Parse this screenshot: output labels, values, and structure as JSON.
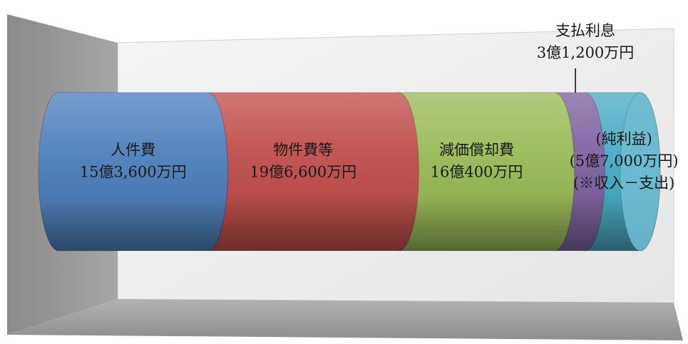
{
  "chart_data": {
    "type": "bar",
    "orientation": "horizontal-stacked-cylinder",
    "unit": "万円",
    "categories": [
      "人件費",
      "物件費等",
      "減価償却費",
      "支払利息",
      "(純利益)"
    ],
    "values": [
      153600,
      196600,
      160400,
      31200,
      57000
    ],
    "segments": [
      {
        "name": "人件費",
        "value": 153600,
        "value_label": "15億3,600万円",
        "note": "",
        "color": "#4f81bd",
        "label_position": "inside"
      },
      {
        "name": "物件費等",
        "value": 196600,
        "value_label": "19億6,600万円",
        "note": "",
        "color": "#c0504d",
        "label_position": "inside"
      },
      {
        "name": "減価償却費",
        "value": 160400,
        "value_label": "16億400万円",
        "note": "",
        "color": "#9bbb59",
        "label_position": "inside"
      },
      {
        "name": "支払利息",
        "value": 31200,
        "value_label": "3億1,200万円",
        "note": "",
        "color": "#8064a2",
        "label_position": "above"
      },
      {
        "name": "(純利益)",
        "value": 57000,
        "value_label": "(5億7,000万円)",
        "note": "(※収入－支出)",
        "color": "#4bacc6",
        "label_position": "inside"
      }
    ],
    "title": "",
    "xlabel": "",
    "ylabel": "",
    "grid": false,
    "legend": "none"
  }
}
